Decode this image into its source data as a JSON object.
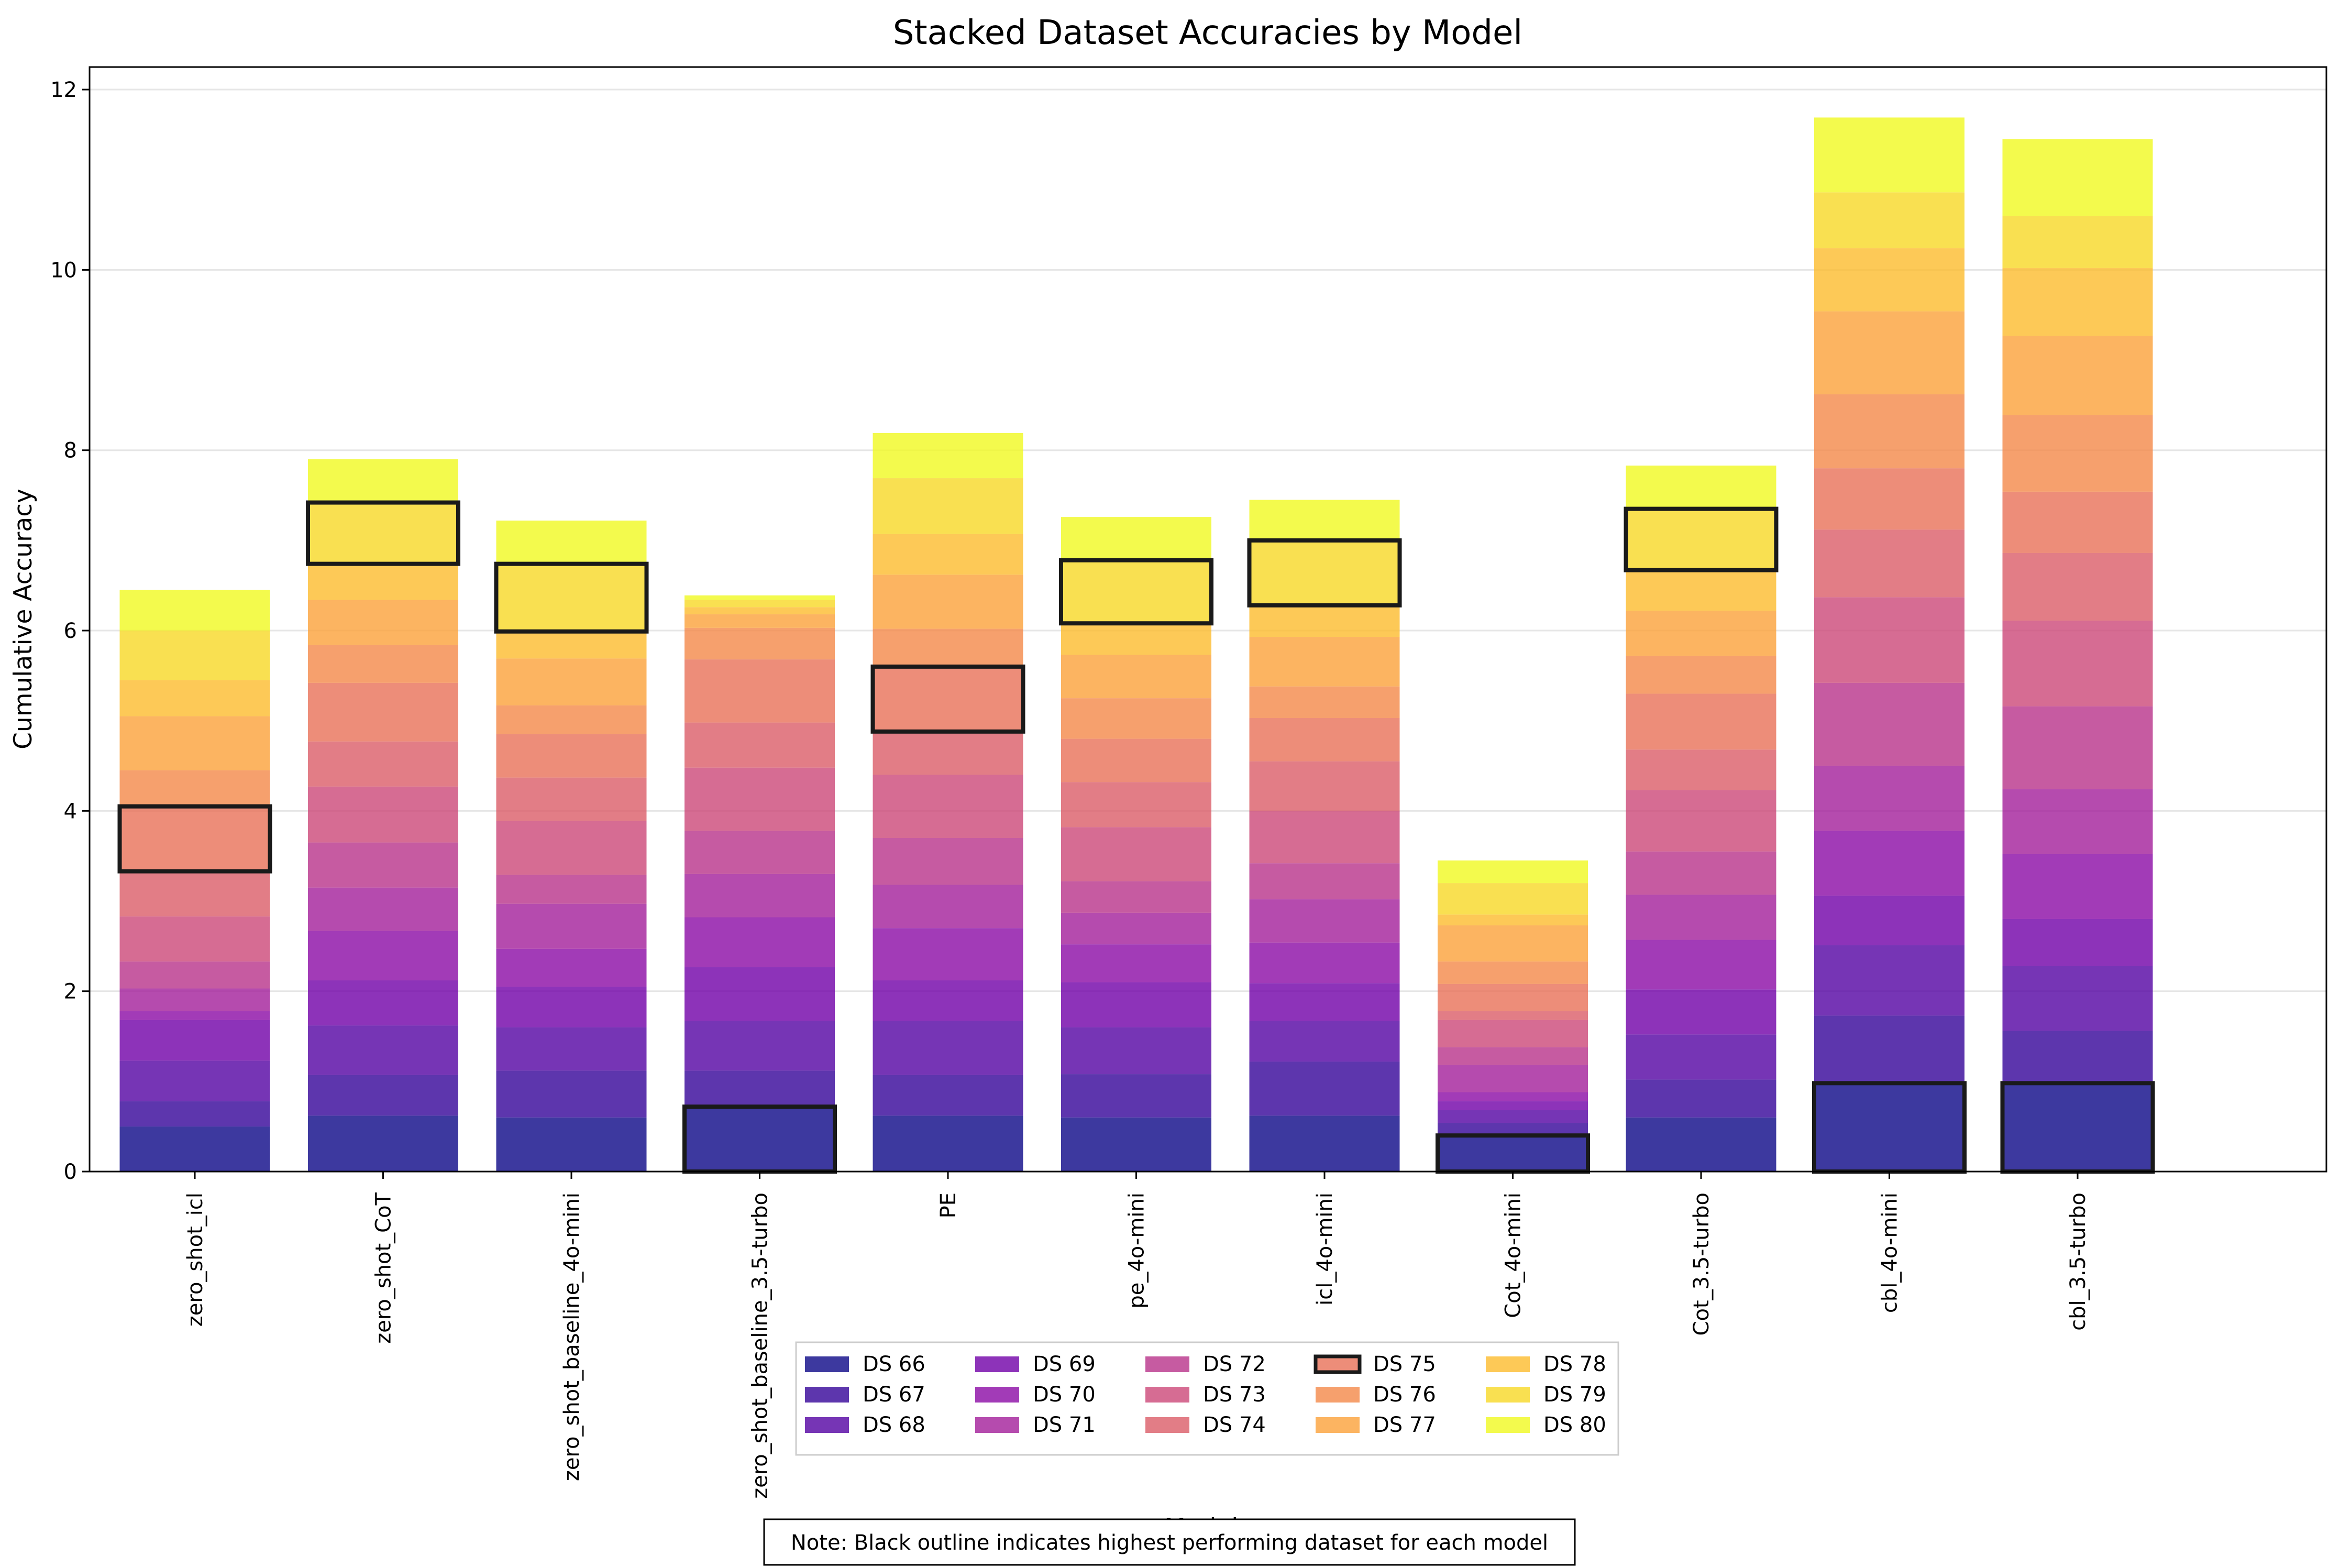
{
  "chart_data": {
    "type": "bar",
    "stacked": true,
    "title": "Stacked Dataset Accuracies by Model",
    "xlabel": "Models",
    "ylabel": "Cumulative Accuracy",
    "ylim": [
      0,
      12.25
    ],
    "yticks": [
      0,
      2,
      4,
      6,
      8,
      10,
      12
    ],
    "grid": "y",
    "legend_position": "bottom-center",
    "legend_columns": 5,
    "note": "Note: Black outline indicates highest performing dataset for each model",
    "categories": [
      "zero_shot_icl",
      "zero_shot_CoT",
      "zero_shot_baseline_4o-mini",
      "zero_shot_baseline_3.5-turbo",
      "PE",
      "pe_4o-mini",
      "icl_4o-mini",
      "Cot_4o-mini",
      "Cot_3.5-turbo",
      "cbl_4o-mini",
      "cbl_3.5-turbo"
    ],
    "series": [
      {
        "name": "DS 66",
        "color": "#0d0887",
        "values": [
          0.5,
          0.62,
          0.6,
          0.72,
          0.62,
          0.6,
          0.62,
          0.4,
          0.6,
          0.98,
          0.98
        ]
      },
      {
        "name": "DS 67",
        "color": "#350498",
        "values": [
          0.28,
          0.45,
          0.52,
          0.4,
          0.45,
          0.48,
          0.6,
          0.14,
          0.42,
          0.75,
          0.58
        ]
      },
      {
        "name": "DS 68",
        "color": "#5402a3",
        "values": [
          0.45,
          0.55,
          0.48,
          0.55,
          0.6,
          0.52,
          0.45,
          0.14,
          0.5,
          0.78,
          0.72
        ]
      },
      {
        "name": "DS 69",
        "color": "#7000a8",
        "values": [
          0.45,
          0.5,
          0.45,
          0.6,
          0.45,
          0.5,
          0.42,
          0.1,
          0.5,
          0.55,
          0.52
        ]
      },
      {
        "name": "DS 70",
        "color": "#8b0aa5",
        "values": [
          0.1,
          0.55,
          0.42,
          0.55,
          0.58,
          0.42,
          0.45,
          0.1,
          0.55,
          0.72,
          0.72
        ]
      },
      {
        "name": "DS 71",
        "color": "#a31e9a",
        "values": [
          0.25,
          0.48,
          0.5,
          0.48,
          0.48,
          0.35,
          0.48,
          0.3,
          0.5,
          0.72,
          0.72
        ]
      },
      {
        "name": "DS 72",
        "color": "#b83289",
        "values": [
          0.3,
          0.5,
          0.32,
          0.48,
          0.52,
          0.35,
          0.4,
          0.2,
          0.48,
          0.92,
          0.92
        ]
      },
      {
        "name": "DS 73",
        "color": "#cc4778",
        "values": [
          0.5,
          0.62,
          0.6,
          0.7,
          0.7,
          0.6,
          0.58,
          0.3,
          0.68,
          0.95,
          0.95
        ]
      },
      {
        "name": "DS 74",
        "color": "#db5c68",
        "values": [
          0.5,
          0.5,
          0.48,
          0.5,
          0.48,
          0.5,
          0.55,
          0.1,
          0.45,
          0.75,
          0.75
        ]
      },
      {
        "name": "DS 75",
        "color": "#e97158",
        "values": [
          0.72,
          0.65,
          0.48,
          0.7,
          0.72,
          0.48,
          0.48,
          0.3,
          0.62,
          0.68,
          0.68
        ]
      },
      {
        "name": "DS 76",
        "color": "#f48849",
        "values": [
          0.4,
          0.42,
          0.32,
          0.35,
          0.42,
          0.45,
          0.35,
          0.25,
          0.42,
          0.82,
          0.85
        ]
      },
      {
        "name": "DS 77",
        "color": "#fba139",
        "values": [
          0.6,
          0.5,
          0.52,
          0.15,
          0.6,
          0.48,
          0.55,
          0.4,
          0.5,
          0.92,
          0.88
        ]
      },
      {
        "name": "DS 78",
        "color": "#fdbb2d",
        "values": [
          0.4,
          0.4,
          0.3,
          0.08,
          0.45,
          0.35,
          0.35,
          0.12,
          0.45,
          0.7,
          0.75
        ]
      },
      {
        "name": "DS 79",
        "color": "#f8d825",
        "values": [
          0.55,
          0.68,
          0.75,
          0.08,
          0.62,
          0.7,
          0.72,
          0.35,
          0.68,
          0.62,
          0.58
        ]
      },
      {
        "name": "DS 80",
        "color": "#f0f921",
        "values": [
          0.45,
          0.48,
          0.48,
          0.05,
          0.5,
          0.48,
          0.45,
          0.25,
          0.48,
          0.83,
          0.85
        ]
      }
    ],
    "highlight": [
      {
        "category": "zero_shot_icl",
        "series": "DS 75"
      },
      {
        "category": "zero_shot_CoT",
        "series": "DS 79"
      },
      {
        "category": "zero_shot_baseline_4o-mini",
        "series": "DS 79"
      },
      {
        "category": "zero_shot_baseline_3.5-turbo",
        "series": "DS 66"
      },
      {
        "category": "PE",
        "series": "DS 75"
      },
      {
        "category": "pe_4o-mini",
        "series": "DS 79"
      },
      {
        "category": "icl_4o-mini",
        "series": "DS 79"
      },
      {
        "category": "Cot_4o-mini",
        "series": "DS 66"
      },
      {
        "category": "Cot_3.5-turbo",
        "series": "DS 79"
      },
      {
        "category": "cbl_4o-mini",
        "series": "DS 66"
      },
      {
        "category": "cbl_3.5-turbo",
        "series": "DS 66"
      }
    ]
  }
}
